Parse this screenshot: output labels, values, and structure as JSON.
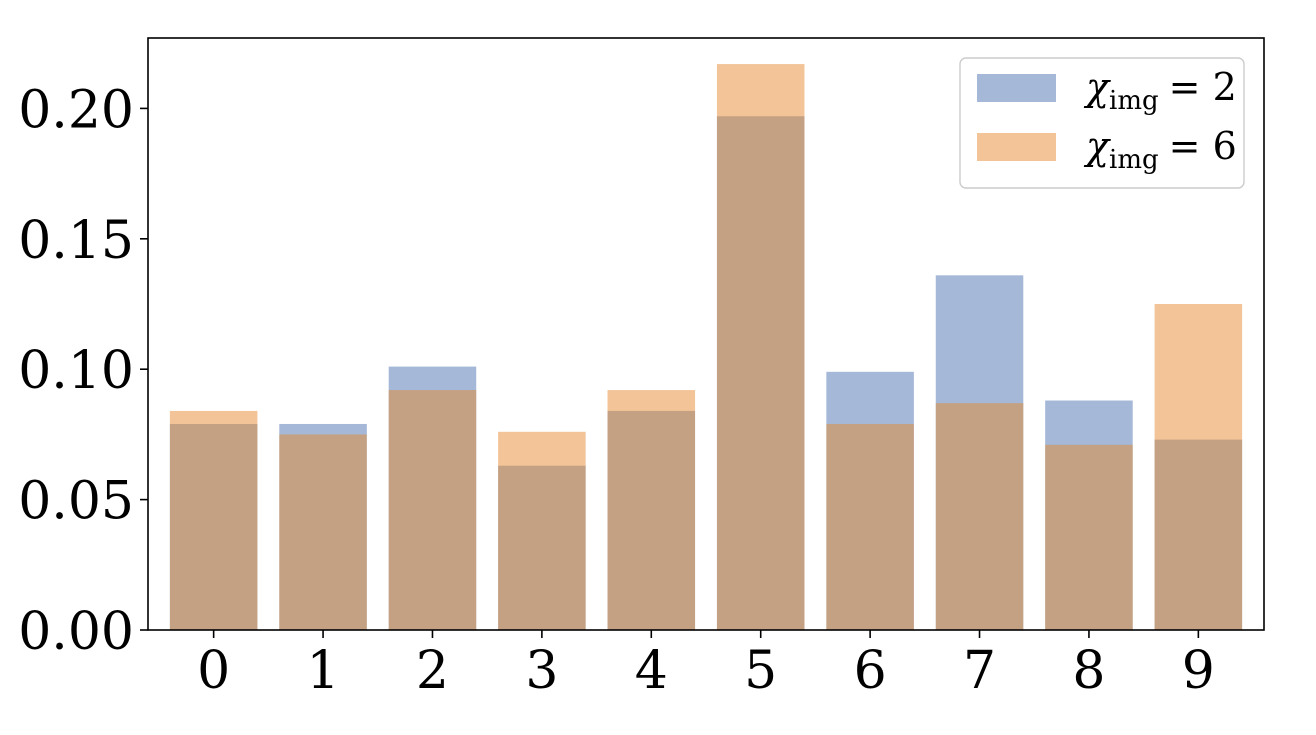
{
  "chart_data": {
    "type": "bar",
    "title": "",
    "xlabel": "",
    "ylabel": "",
    "categories": [
      "0",
      "1",
      "2",
      "3",
      "4",
      "5",
      "6",
      "7",
      "8",
      "9"
    ],
    "ylim": [
      0,
      0.227
    ],
    "yticks": [
      "0.00",
      "0.05",
      "0.10",
      "0.15",
      "0.20"
    ],
    "ytick_values": [
      0,
      0.05,
      0.1,
      0.15,
      0.2
    ],
    "grid": false,
    "legend_position": "top-right",
    "series": [
      {
        "name": "χimg = 2",
        "legend_symbol": "χ",
        "legend_subscript": "img",
        "legend_rhs": "= 2",
        "color": "#4c72b0",
        "opacity": 0.5,
        "values": [
          0.079,
          0.079,
          0.101,
          0.063,
          0.084,
          0.197,
          0.099,
          0.136,
          0.088,
          0.073
        ]
      },
      {
        "name": "χimg = 6",
        "legend_symbol": "χ",
        "legend_subscript": "img",
        "legend_rhs": "= 6",
        "color": "#e58a30",
        "opacity": 0.5,
        "values": [
          0.084,
          0.075,
          0.092,
          0.076,
          0.092,
          0.217,
          0.079,
          0.087,
          0.071,
          0.125
        ]
      }
    ]
  }
}
